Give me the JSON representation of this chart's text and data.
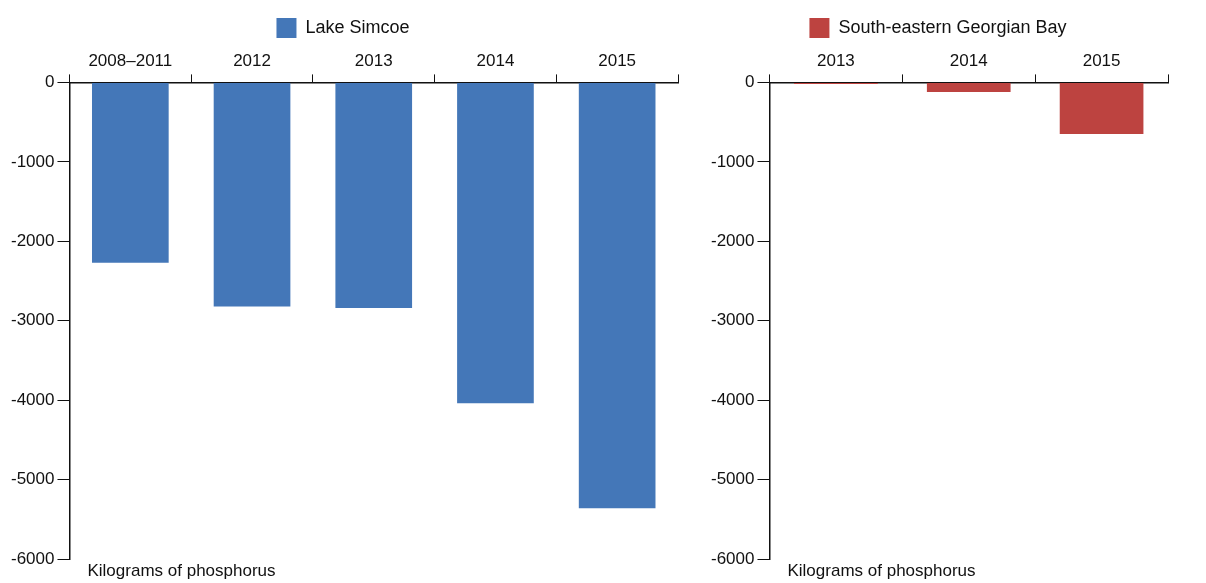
{
  "chart_data": [
    {
      "type": "bar",
      "categories": [
        "2008–2011",
        "2012",
        "2013",
        "2014",
        "2015"
      ],
      "series": [
        {
          "name": "Lake Simcoe",
          "color": "#4477b8",
          "values": [
            -2270,
            -2820,
            -2840,
            -4040,
            -5360
          ]
        }
      ],
      "annotations": [
        "Kilograms of phosphorus"
      ],
      "ylim": [
        -6000,
        0
      ],
      "yticks": [
        -6000,
        -5000,
        -4000,
        -3000,
        -2000,
        -1000,
        0
      ],
      "grid": false,
      "legend": "top"
    },
    {
      "type": "bar",
      "categories": [
        "2013",
        "2014",
        "2015"
      ],
      "series": [
        {
          "name": "South-eastern Georgian Bay",
          "color": "#bd4340",
          "values": [
            -20,
            -120,
            -650
          ]
        }
      ],
      "annotations": [
        "Kilograms of phosphorus"
      ],
      "ylim": [
        -6000,
        0
      ],
      "yticks": [
        -6000,
        -5000,
        -4000,
        -3000,
        -2000,
        -1000,
        0
      ],
      "grid": false,
      "legend": "top"
    }
  ]
}
